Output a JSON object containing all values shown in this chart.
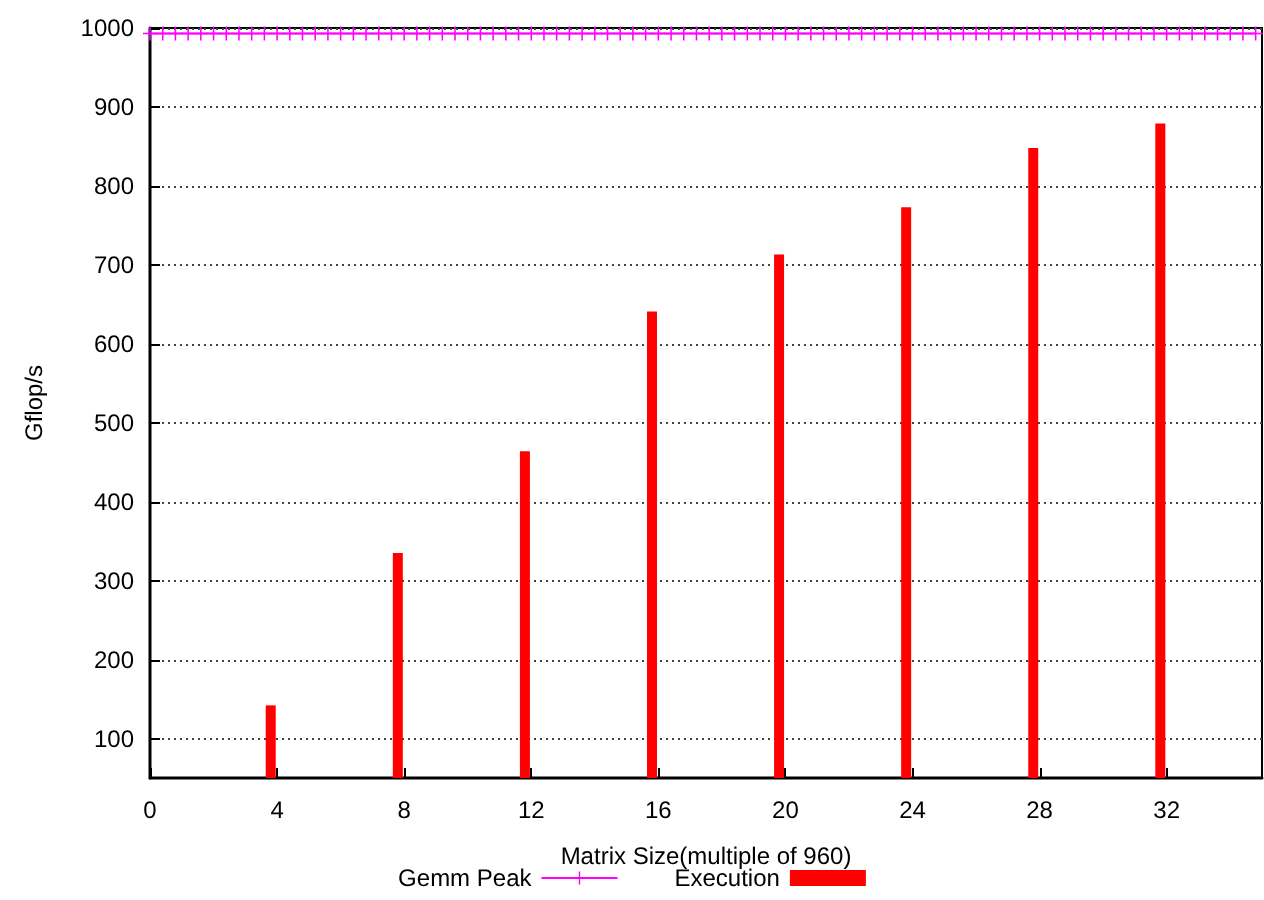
{
  "chart_data": {
    "type": "bar",
    "xlabel": "Matrix Size(multiple of 960)",
    "ylabel": "Gflop/s",
    "xlim": [
      0,
      35
    ],
    "xticks": [
      0,
      4,
      8,
      12,
      16,
      20,
      24,
      28,
      32
    ],
    "ylim": [
      50,
      1000
    ],
    "yticks": [
      100,
      200,
      300,
      400,
      500,
      600,
      700,
      800,
      900,
      1000
    ],
    "grid": "y",
    "legend": "bottom",
    "series": [
      {
        "name": "Gemm Peak",
        "type": "line",
        "color": "#ff00ff",
        "marker": "cross",
        "line_style": "solid",
        "x": [
          0,
          0.4,
          0.8,
          1.2,
          1.6,
          2,
          2.4,
          2.8,
          3.2,
          3.6,
          4,
          4.4,
          4.8,
          5.2,
          5.6,
          6,
          6.4,
          6.8,
          7.2,
          7.6,
          8,
          8.4,
          8.8,
          9.2,
          9.6,
          10,
          10.4,
          10.8,
          11.2,
          11.6,
          12,
          12.4,
          12.8,
          13.2,
          13.6,
          14,
          14.4,
          14.8,
          15.2,
          15.6,
          16,
          16.4,
          16.8,
          17.2,
          17.6,
          18,
          18.4,
          18.8,
          19.2,
          19.6,
          20,
          20.4,
          20.8,
          21.2,
          21.6,
          22,
          22.4,
          22.8,
          23.2,
          23.6,
          24,
          24.4,
          24.8,
          25.2,
          25.6,
          26,
          26.4,
          26.8,
          27.2,
          27.6,
          28,
          28.4,
          28.8,
          29.2,
          29.6,
          30,
          30.4,
          30.8,
          31.2,
          31.6,
          32,
          32.4,
          32.8,
          33.2,
          33.6,
          34,
          34.4,
          34.8
        ],
        "values": [
          993,
          993,
          993,
          993,
          993,
          993,
          993,
          993,
          993,
          993,
          993,
          993,
          993,
          993,
          993,
          993,
          993,
          993,
          993,
          993,
          993,
          993,
          993,
          993,
          993,
          993,
          993,
          993,
          993,
          993,
          993,
          993,
          993,
          993,
          993,
          993,
          993,
          993,
          993,
          993,
          993,
          993,
          993,
          993,
          993,
          993,
          993,
          993,
          993,
          993,
          993,
          993,
          993,
          993,
          993,
          993,
          993,
          993,
          993,
          993,
          993,
          993,
          993,
          993,
          993,
          993,
          993,
          993,
          993,
          993,
          993,
          993,
          993,
          993,
          993,
          993,
          993,
          993,
          993,
          993,
          993,
          993,
          993,
          993,
          993,
          993,
          993,
          993
        ]
      },
      {
        "name": "Execution",
        "color": "#ff0000",
        "x": [
          3.8,
          7.8,
          11.8,
          15.8,
          19.8,
          23.8,
          27.8,
          31.8
        ],
        "values": [
          142,
          335,
          464,
          641,
          713,
          773,
          848,
          879
        ]
      }
    ]
  }
}
